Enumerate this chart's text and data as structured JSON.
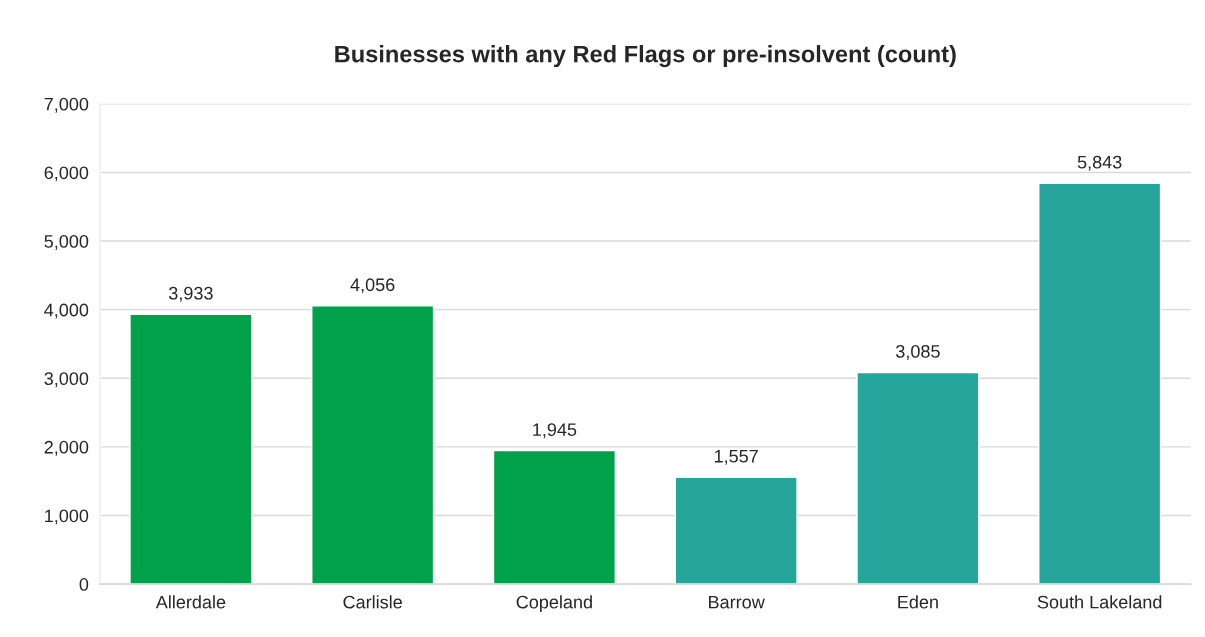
{
  "chart_data": {
    "type": "bar",
    "title": "Businesses with any Red Flags or pre-insolvent (count)",
    "categories": [
      "Allerdale",
      "Carlisle",
      "Copeland",
      "Barrow",
      "Eden",
      "South Lakeland"
    ],
    "values": [
      3933,
      4056,
      1945,
      1557,
      3085,
      5843
    ],
    "colors": [
      "#00a14b",
      "#00a14b",
      "#00a14b",
      "#26a69a",
      "#26a69a",
      "#26a69a"
    ],
    "ylim": [
      0,
      7000
    ],
    "yticks": [
      {
        "value": 0,
        "label": "0"
      },
      {
        "value": 1000,
        "label": "1,000"
      },
      {
        "value": 2000,
        "label": "2,000"
      },
      {
        "value": 3000,
        "label": "3,000"
      },
      {
        "value": 4000,
        "label": "4,000"
      },
      {
        "value": 5000,
        "label": "5,000"
      },
      {
        "value": 6000,
        "label": "6,000"
      },
      {
        "value": 7000,
        "label": "7,000"
      }
    ],
    "value_labels": [
      "3,933",
      "4,056",
      "1,945",
      "1,557",
      "3,085",
      "5,843"
    ],
    "grid": "y",
    "legend": false
  }
}
